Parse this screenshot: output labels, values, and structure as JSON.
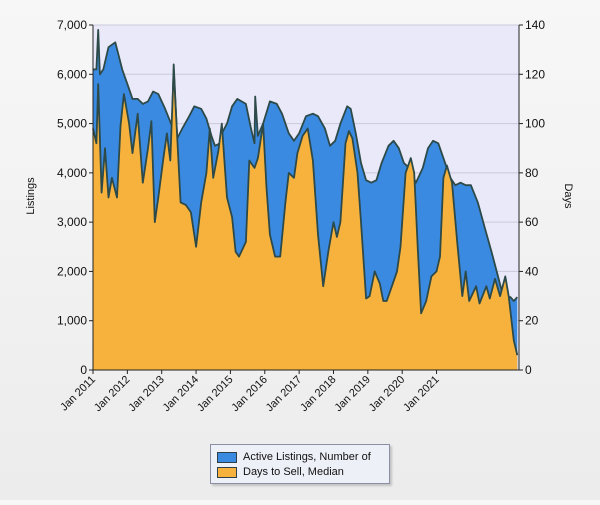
{
  "chart_data": {
    "type": "area",
    "title": "",
    "ylabel": "Listings",
    "y2label": "Days",
    "ylim": [
      0,
      7000
    ],
    "y2lim": [
      0,
      140
    ],
    "yticks": [
      "0",
      "1,000",
      "2,000",
      "3,000",
      "4,000",
      "5,000",
      "6,000",
      "7,000"
    ],
    "y2ticks": [
      "0",
      "20",
      "40",
      "60",
      "80",
      "100",
      "120",
      "140"
    ],
    "xticks": [
      "Jan 2011",
      "Jan 2012",
      "Jan 2013",
      "Jan 2014",
      "Jan 2015",
      "Jan 2016",
      "Jan 2017",
      "Jan 2018",
      "Jan 2019",
      "Jan 2020",
      "Jan 2021"
    ],
    "grid": true,
    "legend_position": "bottom-center",
    "series": [
      {
        "name": "Active Listings, Number of",
        "axis": "left",
        "color": "#3b8ae2",
        "points": [
          [
            2011.0,
            6100
          ],
          [
            2011.1,
            6100
          ],
          [
            2011.15,
            6900
          ],
          [
            2011.2,
            6000
          ],
          [
            2011.3,
            6100
          ],
          [
            2011.45,
            6550
          ],
          [
            2011.65,
            6650
          ],
          [
            2011.85,
            6100
          ],
          [
            2012.0,
            5800
          ],
          [
            2012.15,
            5500
          ],
          [
            2012.3,
            5500
          ],
          [
            2012.45,
            5400
          ],
          [
            2012.6,
            5450
          ],
          [
            2012.75,
            5650
          ],
          [
            2012.9,
            5600
          ],
          [
            2013.1,
            5300
          ],
          [
            2013.3,
            4950
          ],
          [
            2013.35,
            6200
          ],
          [
            2013.45,
            4700
          ],
          [
            2013.6,
            4900
          ],
          [
            2013.8,
            5150
          ],
          [
            2013.95,
            5350
          ],
          [
            2014.15,
            5300
          ],
          [
            2014.3,
            5100
          ],
          [
            2014.45,
            4750
          ],
          [
            2014.55,
            4550
          ],
          [
            2014.7,
            4600
          ],
          [
            2014.75,
            4800
          ],
          [
            2014.9,
            5000
          ],
          [
            2015.05,
            5350
          ],
          [
            2015.2,
            5500
          ],
          [
            2015.45,
            5400
          ],
          [
            2015.6,
            4900
          ],
          [
            2015.7,
            4600
          ],
          [
            2015.72,
            5550
          ],
          [
            2015.8,
            4750
          ],
          [
            2015.95,
            5000
          ],
          [
            2016.15,
            5450
          ],
          [
            2016.35,
            5400
          ],
          [
            2016.5,
            5200
          ],
          [
            2016.7,
            4800
          ],
          [
            2016.85,
            4650
          ],
          [
            2017.0,
            4800
          ],
          [
            2017.2,
            5150
          ],
          [
            2017.4,
            5200
          ],
          [
            2017.55,
            5150
          ],
          [
            2017.75,
            4900
          ],
          [
            2017.9,
            4550
          ],
          [
            2018.05,
            4650
          ],
          [
            2018.2,
            5000
          ],
          [
            2018.4,
            5350
          ],
          [
            2018.5,
            5300
          ],
          [
            2018.65,
            4800
          ],
          [
            2018.8,
            4200
          ],
          [
            2018.95,
            3850
          ],
          [
            2019.1,
            3800
          ],
          [
            2019.25,
            3850
          ],
          [
            2019.4,
            4200
          ],
          [
            2019.6,
            4550
          ],
          [
            2019.75,
            4650
          ],
          [
            2019.9,
            4500
          ],
          [
            2020.05,
            4200
          ],
          [
            2020.2,
            4100
          ],
          [
            2020.4,
            3800
          ],
          [
            2020.6,
            4100
          ],
          [
            2020.75,
            4500
          ],
          [
            2020.9,
            4650
          ],
          [
            2021.05,
            4600
          ],
          [
            2021.2,
            4300
          ],
          [
            2021.4,
            3900
          ],
          [
            2021.55,
            3750
          ],
          [
            2021.7,
            3800
          ],
          [
            2021.85,
            3750
          ],
          [
            2022.0,
            3750
          ],
          [
            2022.2,
            3400
          ],
          [
            2022.4,
            2900
          ],
          [
            2022.6,
            2400
          ],
          [
            2022.75,
            2000
          ],
          [
            2022.9,
            1600
          ],
          [
            2023.0,
            1500
          ],
          [
            2023.15,
            1480
          ],
          [
            2023.25,
            1400
          ],
          [
            2023.35,
            1480
          ]
        ]
      },
      {
        "name": "Days to Sell, Median",
        "axis": "right",
        "color": "#f7b23d",
        "points": [
          [
            2011.0,
            98
          ],
          [
            2011.1,
            92
          ],
          [
            2011.15,
            116
          ],
          [
            2011.25,
            72
          ],
          [
            2011.35,
            90
          ],
          [
            2011.45,
            70
          ],
          [
            2011.55,
            78
          ],
          [
            2011.7,
            70
          ],
          [
            2011.8,
            99
          ],
          [
            2011.9,
            112
          ],
          [
            2012.05,
            100
          ],
          [
            2012.15,
            88
          ],
          [
            2012.3,
            104
          ],
          [
            2012.45,
            76
          ],
          [
            2012.6,
            90
          ],
          [
            2012.7,
            101
          ],
          [
            2012.8,
            60
          ],
          [
            2012.9,
            70
          ],
          [
            2013.05,
            86
          ],
          [
            2013.15,
            96
          ],
          [
            2013.25,
            85
          ],
          [
            2013.35,
            122
          ],
          [
            2013.55,
            68
          ],
          [
            2013.7,
            67
          ],
          [
            2013.85,
            64
          ],
          [
            2014.0,
            50
          ],
          [
            2014.15,
            68
          ],
          [
            2014.3,
            80
          ],
          [
            2014.4,
            98
          ],
          [
            2014.5,
            78
          ],
          [
            2014.65,
            89
          ],
          [
            2014.75,
            100
          ],
          [
            2014.9,
            70
          ],
          [
            2015.05,
            62
          ],
          [
            2015.15,
            48
          ],
          [
            2015.25,
            46
          ],
          [
            2015.45,
            52
          ],
          [
            2015.55,
            85
          ],
          [
            2015.7,
            82
          ],
          [
            2015.8,
            86
          ],
          [
            2015.95,
            100
          ],
          [
            2016.05,
            74
          ],
          [
            2016.15,
            55
          ],
          [
            2016.3,
            46
          ],
          [
            2016.45,
            46
          ],
          [
            2016.6,
            68
          ],
          [
            2016.7,
            80
          ],
          [
            2016.85,
            78
          ],
          [
            2016.95,
            88
          ],
          [
            2017.1,
            95
          ],
          [
            2017.25,
            98
          ],
          [
            2017.4,
            85
          ],
          [
            2017.55,
            55
          ],
          [
            2017.7,
            34
          ],
          [
            2017.85,
            48
          ],
          [
            2018.0,
            60
          ],
          [
            2018.1,
            54
          ],
          [
            2018.2,
            60
          ],
          [
            2018.35,
            92
          ],
          [
            2018.45,
            97
          ],
          [
            2018.55,
            94
          ],
          [
            2018.7,
            80
          ],
          [
            2018.8,
            60
          ],
          [
            2018.95,
            29
          ],
          [
            2019.05,
            30
          ],
          [
            2019.2,
            40
          ],
          [
            2019.35,
            35
          ],
          [
            2019.45,
            28
          ],
          [
            2019.55,
            28
          ],
          [
            2019.7,
            34
          ],
          [
            2019.85,
            40
          ],
          [
            2019.95,
            50
          ],
          [
            2020.1,
            80
          ],
          [
            2020.25,
            86
          ],
          [
            2020.35,
            80
          ],
          [
            2020.45,
            50
          ],
          [
            2020.55,
            23
          ],
          [
            2020.7,
            28
          ],
          [
            2020.85,
            38
          ],
          [
            2021.0,
            40
          ],
          [
            2021.1,
            46
          ],
          [
            2021.2,
            78
          ],
          [
            2021.3,
            83
          ],
          [
            2021.45,
            76
          ],
          [
            2021.6,
            52
          ],
          [
            2021.75,
            30
          ],
          [
            2021.85,
            40
          ],
          [
            2021.95,
            28
          ],
          [
            2022.15,
            34
          ],
          [
            2022.25,
            27
          ],
          [
            2022.45,
            34
          ],
          [
            2022.55,
            29
          ],
          [
            2022.7,
            37
          ],
          [
            2022.85,
            30
          ],
          [
            2023.0,
            38
          ],
          [
            2023.1,
            30
          ],
          [
            2023.25,
            12
          ],
          [
            2023.35,
            6
          ]
        ]
      }
    ]
  }
}
